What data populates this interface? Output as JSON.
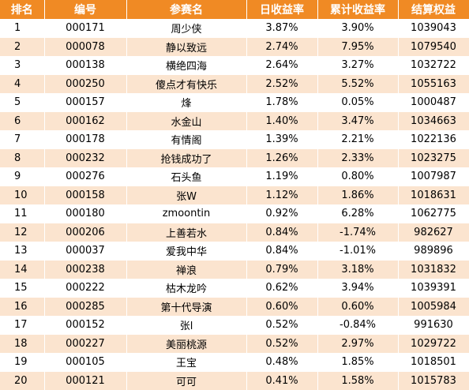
{
  "table": {
    "headers": [
      "排名",
      "编号",
      "参赛名",
      "日收益率",
      "累计收益率",
      "结算权益"
    ],
    "rows": [
      {
        "rank": "1",
        "id": "000171",
        "name": "周少侠",
        "daily": "3.87%",
        "cumulative": "3.90%",
        "equity": "1039043"
      },
      {
        "rank": "2",
        "id": "000078",
        "name": "静以致远",
        "daily": "2.74%",
        "cumulative": "7.95%",
        "equity": "1079540"
      },
      {
        "rank": "3",
        "id": "000138",
        "name": "横绝四海",
        "daily": "2.64%",
        "cumulative": "3.27%",
        "equity": "1032722"
      },
      {
        "rank": "4",
        "id": "000250",
        "name": "傻点才有快乐",
        "daily": "2.52%",
        "cumulative": "5.52%",
        "equity": "1055163"
      },
      {
        "rank": "5",
        "id": "000157",
        "name": "烽",
        "daily": "1.78%",
        "cumulative": "0.05%",
        "equity": "1000487"
      },
      {
        "rank": "6",
        "id": "000162",
        "name": "水金山",
        "daily": "1.40%",
        "cumulative": "3.47%",
        "equity": "1034663"
      },
      {
        "rank": "7",
        "id": "000178",
        "name": "有情阁",
        "daily": "1.39%",
        "cumulative": "2.21%",
        "equity": "1022136"
      },
      {
        "rank": "8",
        "id": "000232",
        "name": "抢钱成功了",
        "daily": "1.26%",
        "cumulative": "2.33%",
        "equity": "1023275"
      },
      {
        "rank": "9",
        "id": "000276",
        "name": "石头鱼",
        "daily": "1.19%",
        "cumulative": "0.80%",
        "equity": "1007987"
      },
      {
        "rank": "10",
        "id": "000158",
        "name": "张W",
        "daily": "1.12%",
        "cumulative": "1.86%",
        "equity": "1018631"
      },
      {
        "rank": "11",
        "id": "000180",
        "name": "zmoontin",
        "daily": "0.92%",
        "cumulative": "6.28%",
        "equity": "1062775"
      },
      {
        "rank": "12",
        "id": "000206",
        "name": "上善若水",
        "daily": "0.84%",
        "cumulative": "-1.74%",
        "equity": "982627"
      },
      {
        "rank": "13",
        "id": "000037",
        "name": "爱我中华",
        "daily": "0.84%",
        "cumulative": "-1.01%",
        "equity": "989896"
      },
      {
        "rank": "14",
        "id": "000238",
        "name": "禅浪",
        "daily": "0.79%",
        "cumulative": "3.18%",
        "equity": "1031832"
      },
      {
        "rank": "15",
        "id": "000222",
        "name": "枯木龙吟",
        "daily": "0.62%",
        "cumulative": "3.94%",
        "equity": "1039391"
      },
      {
        "rank": "16",
        "id": "000285",
        "name": "第十代导演",
        "daily": "0.60%",
        "cumulative": "0.60%",
        "equity": "1005984"
      },
      {
        "rank": "17",
        "id": "000152",
        "name": "张l",
        "daily": "0.52%",
        "cumulative": "-0.84%",
        "equity": "991630"
      },
      {
        "rank": "18",
        "id": "000227",
        "name": "美丽桃源",
        "daily": "0.52%",
        "cumulative": "2.97%",
        "equity": "1029722"
      },
      {
        "rank": "19",
        "id": "000105",
        "name": "王宝",
        "daily": "0.48%",
        "cumulative": "1.85%",
        "equity": "1018501"
      },
      {
        "rank": "20",
        "id": "000121",
        "name": "可可",
        "daily": "0.41%",
        "cumulative": "1.58%",
        "equity": "1015783"
      }
    ]
  }
}
